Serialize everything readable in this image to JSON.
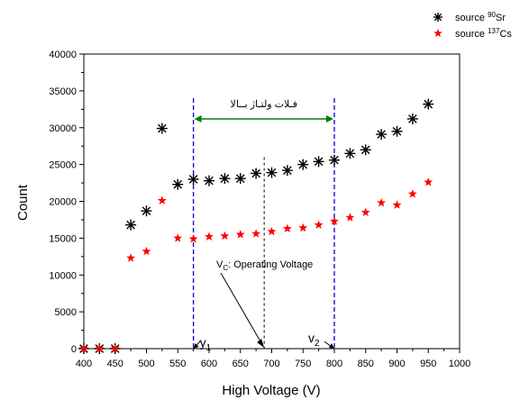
{
  "chart_data": {
    "type": "scatter",
    "xlabel": "High Voltage (V)",
    "ylabel": "Count",
    "xlim": [
      400,
      1000
    ],
    "ylim": [
      0,
      40000
    ],
    "x_ticks": [
      "400",
      "450",
      "500",
      "550",
      "600",
      "650",
      "700",
      "750",
      "800",
      "850",
      "900",
      "950",
      "1000"
    ],
    "y_ticks": [
      "0",
      "5000",
      "10000",
      "15000",
      "20000",
      "25000",
      "30000",
      "35000",
      "40000"
    ],
    "legend": {
      "placement": "top-right",
      "entries": [
        {
          "prefix": "source ",
          "isotope": "90",
          "element": "Sr"
        },
        {
          "prefix": "source ",
          "isotope": "137",
          "element": "Cs"
        }
      ]
    },
    "series": [
      {
        "marker": "asterisk",
        "color": "#000000",
        "points": [
          [
            400,
            0
          ],
          [
            425,
            0
          ],
          [
            450,
            0
          ],
          [
            475,
            16800
          ],
          [
            500,
            18700
          ],
          [
            525,
            29900
          ],
          [
            550,
            22300
          ],
          [
            575,
            23000
          ],
          [
            600,
            22800
          ],
          [
            625,
            23100
          ],
          [
            650,
            23100
          ],
          [
            675,
            23800
          ],
          [
            700,
            23900
          ],
          [
            725,
            24200
          ],
          [
            750,
            25000
          ],
          [
            775,
            25400
          ],
          [
            800,
            25600
          ],
          [
            825,
            26500
          ],
          [
            850,
            27000
          ],
          [
            875,
            29100
          ],
          [
            900,
            29500
          ],
          [
            925,
            31200
          ],
          [
            950,
            33200
          ]
        ]
      },
      {
        "marker": "star",
        "color": "#ff0000",
        "points": [
          [
            400,
            0
          ],
          [
            425,
            0
          ],
          [
            450,
            0
          ],
          [
            475,
            12300
          ],
          [
            500,
            13200
          ],
          [
            525,
            20100
          ],
          [
            550,
            15000
          ],
          [
            575,
            14900
          ],
          [
            600,
            15200
          ],
          [
            625,
            15300
          ],
          [
            650,
            15500
          ],
          [
            675,
            15600
          ],
          [
            700,
            15900
          ],
          [
            725,
            16300
          ],
          [
            750,
            16400
          ],
          [
            775,
            16800
          ],
          [
            800,
            17300
          ],
          [
            825,
            17800
          ],
          [
            850,
            18500
          ],
          [
            875,
            19800
          ],
          [
            900,
            19500
          ],
          [
            925,
            21000
          ],
          [
            950,
            22600
          ]
        ]
      }
    ],
    "annotations": {
      "v1_voltage": 575,
      "v2_voltage": 800,
      "vc_voltage": 688,
      "vc_line_top": 26000,
      "plateau_arrow_count": 31200,
      "plateau_label": "فـلات ولتـاژ بــالا",
      "vc_label_main": "V",
      "vc_label_sub": "C",
      "vc_label_rest": ": Operating Voltage",
      "v1_main": "y",
      "v1_sub": "1",
      "v2_main": "v",
      "v2_sub": "2",
      "colors": {
        "bounds": "#0000cc",
        "plateau": "#008000",
        "vc": "#000000"
      }
    }
  }
}
